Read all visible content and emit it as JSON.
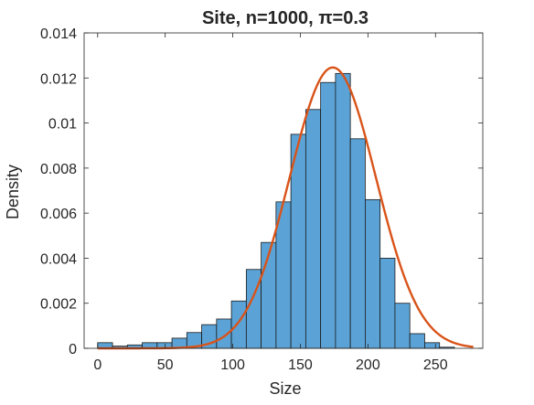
{
  "chart_data": {
    "type": "bar",
    "title": "Site, n=1000, π=0.3",
    "xlabel": "Size",
    "ylabel": "Density",
    "xlim": [
      -10,
      285
    ],
    "ylim": [
      0,
      0.014
    ],
    "xticks": [
      0,
      50,
      100,
      150,
      200,
      250
    ],
    "xtick_labels": [
      "0",
      "50",
      "100",
      "150",
      "200",
      "250"
    ],
    "yticks": [
      0,
      0.002,
      0.004,
      0.006,
      0.008,
      0.01,
      0.012,
      0.014
    ],
    "ytick_labels": [
      "0",
      "0.002",
      "0.004",
      "0.006",
      "0.008",
      "0.01",
      "0.012",
      "0.014"
    ],
    "grid": false,
    "bin_width": 11,
    "series": [
      {
        "kind": "histogram",
        "color": "#5ba3d6",
        "edge_color": "#1a1a1a",
        "bin_edges": [
          0,
          11,
          22,
          33,
          44,
          55,
          66,
          77,
          88,
          99,
          110,
          121,
          132,
          143,
          154,
          165,
          176,
          187,
          198,
          209,
          220,
          231,
          242,
          253,
          264
        ],
        "values": [
          0.00025,
          0.0001,
          0.00015,
          0.00025,
          0.00025,
          0.00045,
          0.0007,
          0.00105,
          0.0013,
          0.0021,
          0.0035,
          0.0047,
          0.0065,
          0.0095,
          0.0106,
          0.0118,
          0.0122,
          0.0093,
          0.0066,
          0.004,
          0.002,
          0.00065,
          0.00025,
          5e-05
        ]
      },
      {
        "kind": "line",
        "color": "#d95319",
        "distribution": "normal",
        "mean": 174,
        "std": 32,
        "x_range": [
          0,
          278
        ]
      }
    ]
  }
}
